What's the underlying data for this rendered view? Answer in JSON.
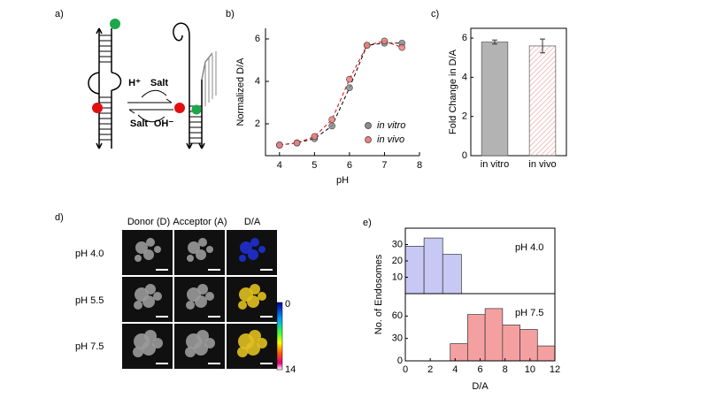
{
  "figure": {
    "panel_labels": [
      "a)",
      "b)",
      "c)",
      "d)",
      "e)"
    ]
  },
  "diagram": {
    "labels": [
      "H⁺",
      "Salt",
      "Salt",
      "OH⁻"
    ]
  },
  "images": {
    "columns": [
      "Donor (D)",
      "Acceptor (A)",
      "D/A"
    ],
    "rows": [
      "pH 4.0",
      "pH 5.5",
      "pH 7.5"
    ],
    "colorbar_labels": [
      "0",
      "14"
    ]
  },
  "chart_data": [
    {
      "type": "scatter",
      "xlabel": "pH",
      "ylabel": "Normalized D/A",
      "x": [
        4,
        4.5,
        5,
        5.5,
        6,
        6.5,
        7,
        7.5
      ],
      "xlim": [
        3.6,
        8
      ],
      "xticks": [
        4,
        5,
        6,
        7,
        8
      ],
      "ylim": [
        0.5,
        6.5
      ],
      "yticks": [
        2,
        4,
        6
      ],
      "line_style": "dashed",
      "legend": "lower-right",
      "series": [
        {
          "name": "in vitro",
          "color": "#8c8c8c",
          "line_color": "#000000",
          "values": [
            1.0,
            1.1,
            1.3,
            1.9,
            3.7,
            5.7,
            5.8,
            5.8
          ]
        },
        {
          "name": "in vivo",
          "color": "#f08080",
          "line_color": "#e00000",
          "values": [
            1.0,
            1.1,
            1.4,
            2.2,
            4.1,
            5.7,
            5.9,
            5.6
          ]
        }
      ]
    },
    {
      "type": "bar",
      "ylabel": "Fold Change in D/A",
      "categories": [
        "in vitro",
        "in vivo"
      ],
      "values": [
        5.8,
        5.6
      ],
      "errors": [
        0.1,
        0.35
      ],
      "colors": [
        "#b3b3b3",
        "#e89a9a"
      ],
      "hatch": [
        false,
        true
      ],
      "ylim": [
        0,
        6.5
      ],
      "yticks": [
        0,
        2,
        4,
        6
      ]
    },
    {
      "type": "histogram",
      "xlabel": "D/A",
      "ylabel": "No. of Endosomes",
      "xlim": [
        0,
        12
      ],
      "xticks": [
        0,
        2,
        4,
        6,
        8,
        10,
        12
      ],
      "panels": [
        {
          "annotation": "pH 4.0",
          "color": "#c8c8f5",
          "bins": [
            0,
            1.5,
            3,
            4.5
          ],
          "values": [
            29,
            34,
            24
          ],
          "ylim": [
            0,
            40
          ],
          "yticks": [
            10,
            20,
            30
          ]
        },
        {
          "annotation": "pH 7.5",
          "color": "#f5a0a0",
          "bins": [
            3.6,
            5,
            6.4,
            7.8,
            9.2,
            10.6,
            12
          ],
          "values": [
            23,
            62,
            70,
            48,
            42,
            20
          ],
          "ylim": [
            0,
            90
          ],
          "yticks": [
            0,
            30,
            60
          ]
        }
      ]
    }
  ]
}
